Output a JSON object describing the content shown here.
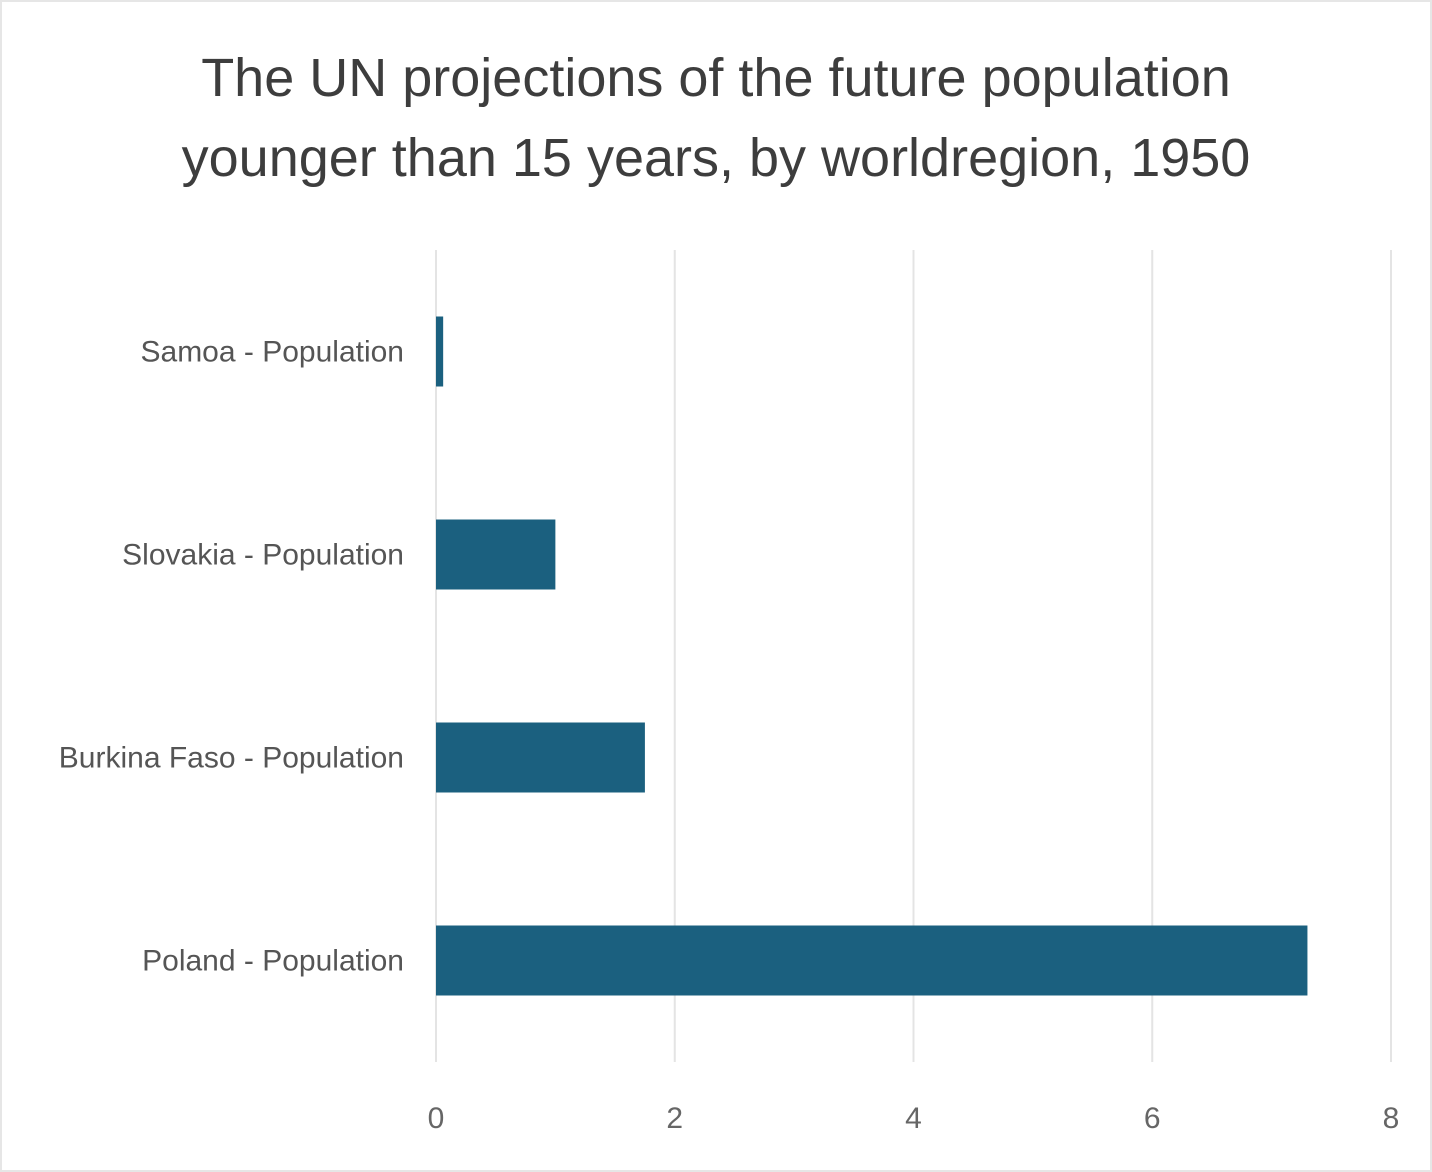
{
  "chart_data": {
    "type": "bar",
    "orientation": "horizontal",
    "title_lines": [
      "The UN projections of the future population",
      "younger than 15 years, by worldregion, 1950"
    ],
    "categories": [
      "Samoa - Population",
      "Slovakia - Population",
      "Burkina Faso - Population",
      "Poland - Population"
    ],
    "values": [
      0.06,
      1.0,
      1.75,
      7.3
    ],
    "xlim": [
      0,
      8
    ],
    "xticks": [
      "0",
      "2",
      "4",
      "6",
      "8"
    ],
    "grid": true,
    "bar_color": "#1b607f",
    "grid_color": "#e4e4e4",
    "title_color": "#3d3d3d"
  }
}
